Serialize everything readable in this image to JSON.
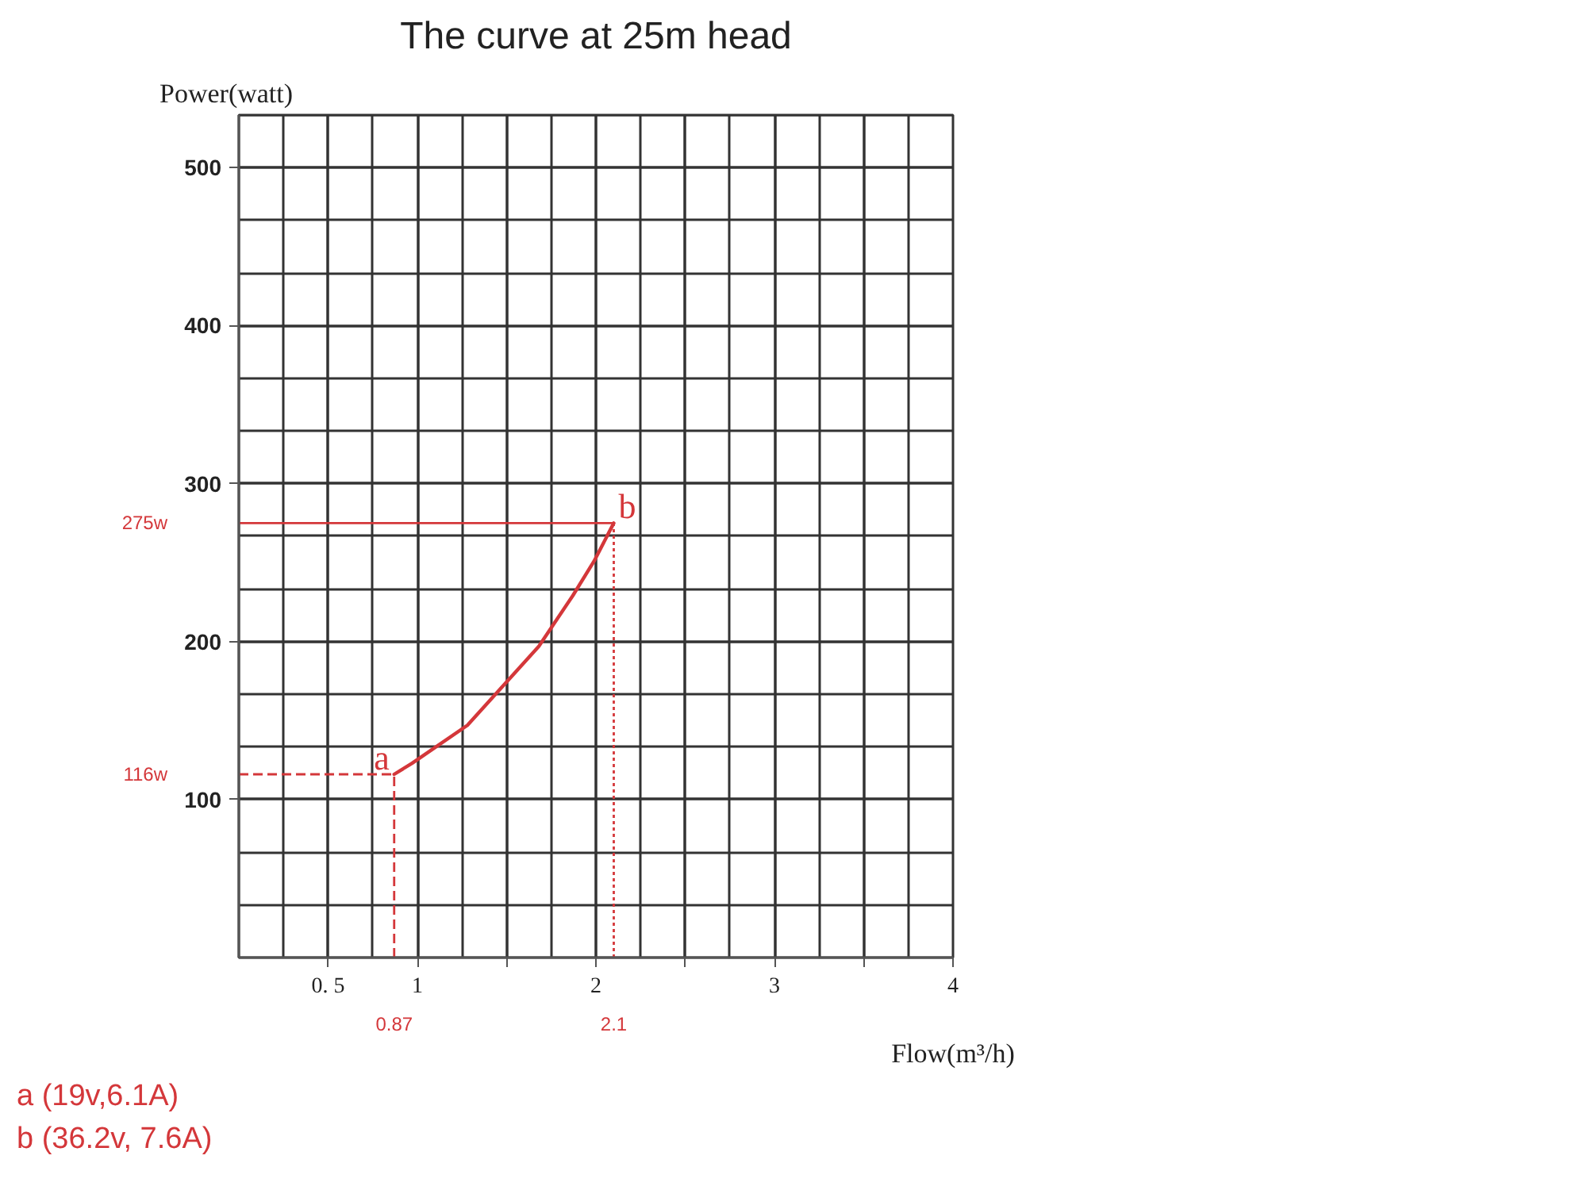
{
  "chart_data": {
    "type": "line",
    "title": "The curve at 25m head",
    "xlabel": "Flow(m³/h)",
    "ylabel": "Power(watt)",
    "x": [
      0.87,
      0.97,
      1.28,
      1.48,
      1.68,
      1.87,
      1.99,
      2.1
    ],
    "series": [
      {
        "color": "#d4373a",
        "values": [
          116,
          123,
          147,
          172,
          197,
          229,
          251,
          275
        ]
      }
    ],
    "xlim": [
      0,
      4
    ],
    "ylim": [
      0,
      533.3
    ],
    "xticks": [
      {
        "value": 0.5,
        "label": "0. 5"
      },
      1,
      {
        "value": 1.5,
        "label": null
      },
      2,
      {
        "value": 2.5,
        "label": null
      },
      3,
      {
        "value": 3.5,
        "label": null
      },
      4
    ],
    "yticks": [
      100,
      200,
      300,
      400,
      500
    ],
    "grid": true,
    "ref_lines": [
      {
        "axis": "y",
        "value": 116,
        "label": "116w",
        "color": "#d4373a",
        "line_style": "dashed"
      },
      {
        "axis": "x",
        "value": 0.87,
        "label": "0.87",
        "color": "#d4373a",
        "line_style": "dashed"
      },
      {
        "axis": "y",
        "value": 275,
        "label": "275w",
        "color": "#d4373a",
        "line_style": "solid"
      },
      {
        "axis": "x",
        "value": 2.1,
        "label": "2.1",
        "color": "#d4373a",
        "line_style": "dotted"
      }
    ],
    "annotations": [
      {
        "text": "a",
        "x": 0.87,
        "y": 116
      },
      {
        "text": "b",
        "x": 2.1,
        "y": 275
      },
      "a (19v,6.1A)",
      "b (36.2v, 7.6A)"
    ]
  }
}
